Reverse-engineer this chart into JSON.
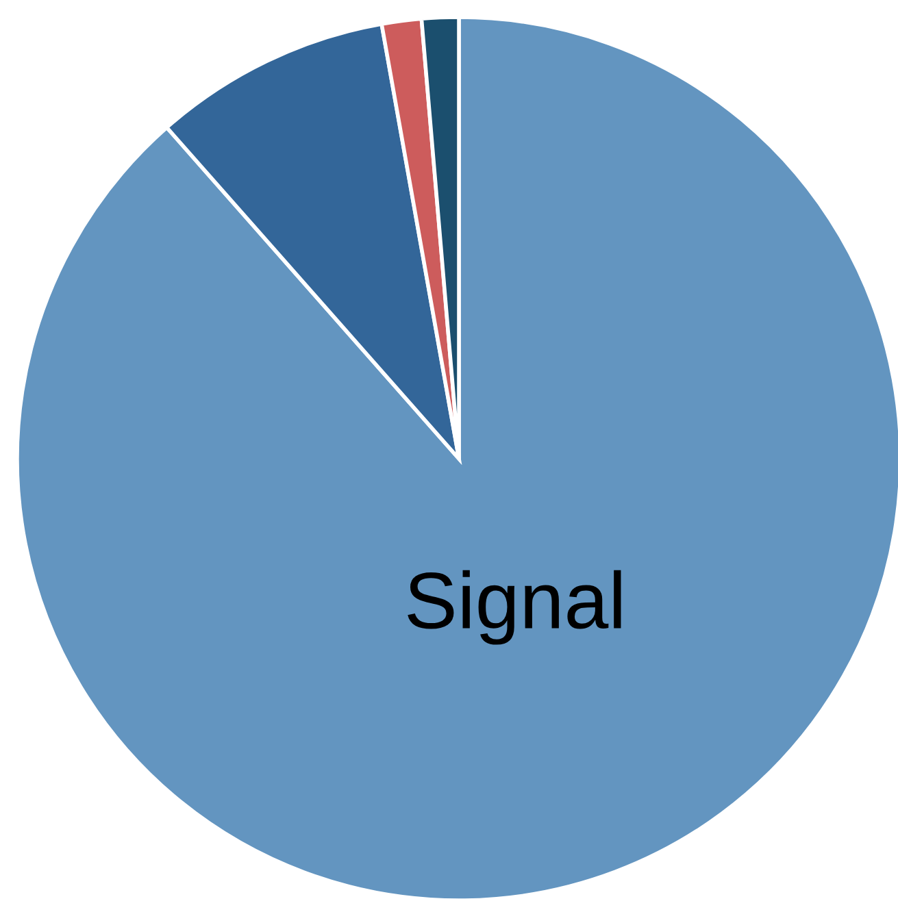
{
  "chart_data": {
    "type": "pie",
    "categories": [
      "Signal",
      null,
      null,
      null
    ],
    "values": [
      88.5,
      8.7,
      1.45,
      1.35
    ],
    "colors": [
      "#6395c0",
      "#336699",
      "#cd5c5c",
      "#1b4f6e"
    ]
  }
}
